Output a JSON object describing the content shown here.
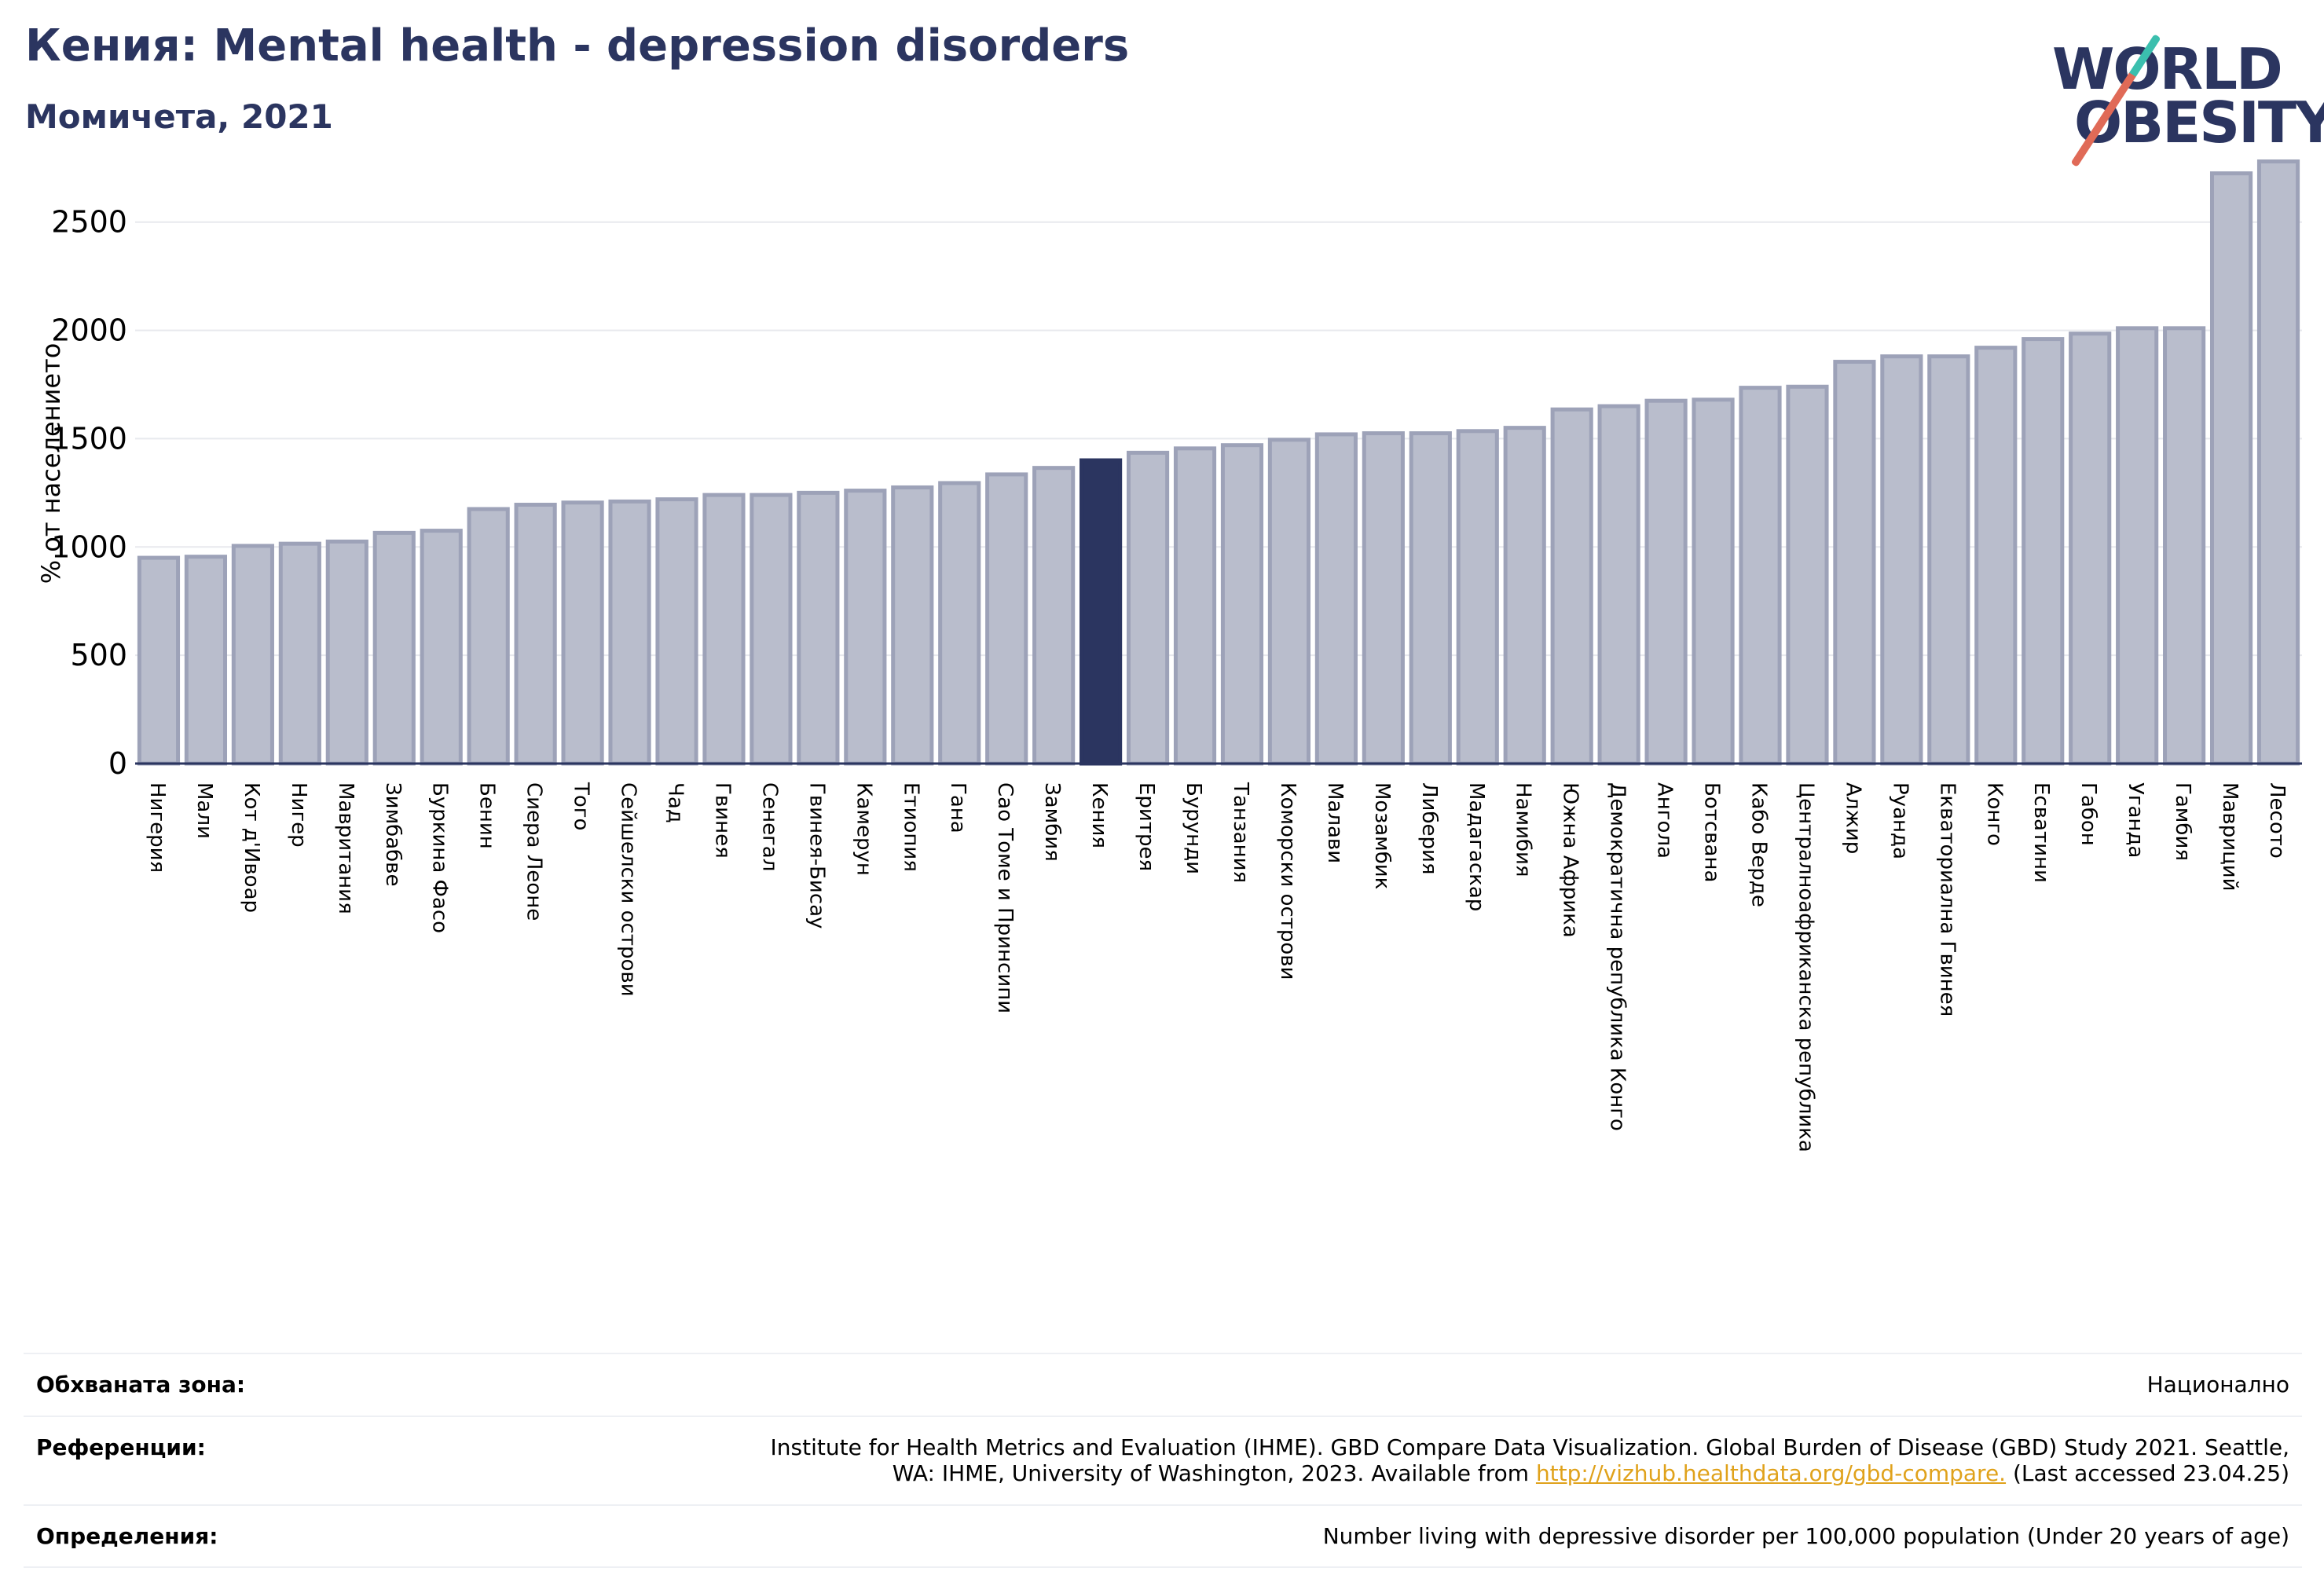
{
  "header": {
    "title": "Кения: Mental health - depression disorders",
    "subtitle": "Момичета, 2021"
  },
  "logo": {
    "line1": "WORLD",
    "line2": "OBESITY"
  },
  "colors": {
    "bar": "#b9bdcc",
    "bar_edge": "#9da2b8",
    "highlight": "#2b3560",
    "grid": "#e8e9ee",
    "axis": "#2b3560"
  },
  "chart_data": {
    "type": "bar",
    "ylabel": "% от населението",
    "ylim": [
      0,
      2800
    ],
    "yticks": [
      0,
      500,
      1000,
      1500,
      2000,
      2500
    ],
    "grid": true,
    "highlight": "Кения",
    "categories": [
      "Нигерия",
      "Мали",
      "Кот д'Ивоар",
      "Нигер",
      "Мавритания",
      "Зимбабве",
      "Буркина Фасо",
      "Бенин",
      "Сиера Леоне",
      "Того",
      "Сейшелски острови",
      "Чад",
      "Гвинея",
      "Сенегал",
      "Гвинея-Бисау",
      "Камерун",
      "Етиопия",
      "Гана",
      "Сао Томе и Принсипи",
      "Замбия",
      "Кения",
      "Еритрея",
      "Бурунди",
      "Танзания",
      "Коморски острови",
      "Малави",
      "Мозамбик",
      "Либерия",
      "Мадагаскар",
      "Намибия",
      "Южна Африка",
      "Демократична република Конго",
      "Ангола",
      "Ботсвана",
      "Кабо Верде",
      "Централноафриканска република",
      "Алжир",
      "Руанда",
      "Екваториална Гвинея",
      "Конго",
      "Есватини",
      "Габон",
      "Уганда",
      "Гамбия",
      "Мавриций",
      "Лесото"
    ],
    "values": [
      950,
      955,
      1005,
      1015,
      1025,
      1065,
      1075,
      1175,
      1195,
      1205,
      1210,
      1220,
      1240,
      1240,
      1250,
      1260,
      1275,
      1295,
      1335,
      1365,
      1400,
      1435,
      1455,
      1470,
      1495,
      1520,
      1525,
      1525,
      1535,
      1550,
      1635,
      1650,
      1675,
      1680,
      1735,
      1740,
      1855,
      1880,
      1880,
      1920,
      1960,
      1985,
      2010,
      2010,
      2725,
      2780
    ]
  },
  "footer": {
    "coverage_label": "Обхваната зона:",
    "coverage_value": "Национално",
    "references_label": "Референции:",
    "references_text1": "Institute for Health Metrics and Evaluation (IHME). GBD Compare Data Visualization. Global Burden of Disease (GBD) Study 2021. Seattle,",
    "references_text2": "WA: IHME, University of Washington, 2023. Available from ",
    "references_link": "http://vizhub.healthdata.org/gbd-compare.",
    "references_text3": " (Last accessed 23.04.25)",
    "definitions_label": "Определения:",
    "definitions_value": "Number living with depressive disorder per 100,000 population (Under 20 years of age)"
  }
}
